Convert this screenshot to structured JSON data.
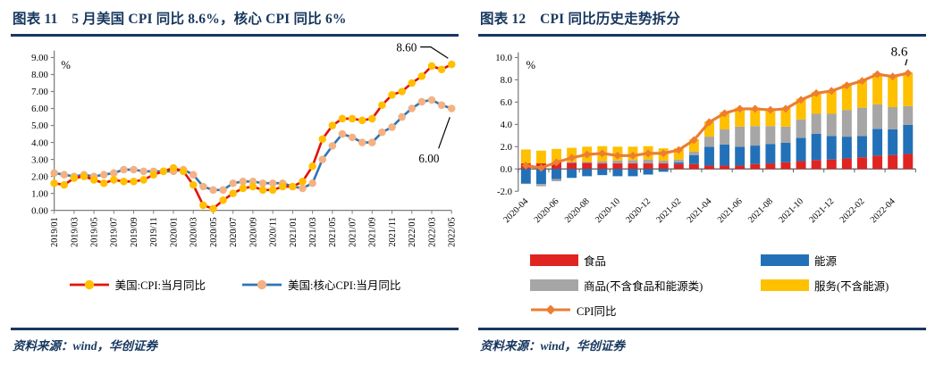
{
  "figure11": {
    "title": "图表 11　5 月美国 CPI 同比 8.6%，核心 CPI 同比 6%",
    "source": "资料来源：wind，华创证券"
  },
  "figure12": {
    "title": "图表 12　CPI 同比历史走势拆分",
    "source": "资料来源：wind，华创证券"
  },
  "chart_data": [
    {
      "type": "line",
      "figure": "图表 11",
      "unit_label": "%",
      "ylim": [
        0,
        9
      ],
      "ytick_labels": [
        "0.00",
        "1.00",
        "2.00",
        "3.00",
        "4.00",
        "5.00",
        "6.00",
        "7.00",
        "8.00",
        "9.00"
      ],
      "x_tick_labels": [
        "2019/01",
        "2019/03",
        "2019/05",
        "2019/07",
        "2019/09",
        "2019/11",
        "2020/01",
        "2020/03",
        "2020/05",
        "2020/07",
        "2020/09",
        "2020/11",
        "2021/01",
        "2021/03",
        "2021/05",
        "2021/07",
        "2021/09",
        "2021/11",
        "2022/01",
        "2022/03",
        "2022/05"
      ],
      "x_tick_step": 2,
      "grid": false,
      "legend_position": "bottom",
      "series": [
        {
          "name": "美国:CPI:当月同比",
          "line_color": "#E3120B",
          "marker_color": "#FFC000",
          "values": [
            1.6,
            1.5,
            1.9,
            2.0,
            1.8,
            1.6,
            1.8,
            1.7,
            1.7,
            1.8,
            2.1,
            2.3,
            2.5,
            2.3,
            1.5,
            0.3,
            0.1,
            0.6,
            1.0,
            1.3,
            1.4,
            1.2,
            1.2,
            1.4,
            1.4,
            1.7,
            2.6,
            4.2,
            5.0,
            5.4,
            5.4,
            5.3,
            5.4,
            6.2,
            6.8,
            7.0,
            7.5,
            7.9,
            8.5,
            8.3,
            8.6
          ]
        },
        {
          "name": "美国:核心CPI:当月同比",
          "line_color": "#2E75B6",
          "marker_color": "#F4B183",
          "values": [
            2.2,
            2.1,
            2.0,
            2.1,
            2.0,
            2.1,
            2.2,
            2.4,
            2.4,
            2.3,
            2.3,
            2.3,
            2.3,
            2.4,
            2.1,
            1.4,
            1.2,
            1.2,
            1.6,
            1.7,
            1.7,
            1.6,
            1.6,
            1.6,
            1.4,
            1.3,
            1.6,
            3.0,
            3.8,
            4.5,
            4.3,
            4.0,
            4.0,
            4.6,
            4.9,
            5.5,
            6.0,
            6.4,
            6.5,
            6.2,
            6.0
          ]
        }
      ],
      "annotations": [
        {
          "text": "8.60",
          "series": 0,
          "point": "last"
        },
        {
          "text": "6.00",
          "series": 1,
          "point": "last"
        }
      ]
    },
    {
      "type": "stacked-bar-line-combo",
      "figure": "图表 12",
      "unit_label": "%",
      "ylim": [
        -2,
        10
      ],
      "ytick_labels": [
        "-2.0",
        "0.0",
        "2.0",
        "4.0",
        "6.0",
        "8.0",
        "10.0"
      ],
      "x_tick_labels": [
        "2020-04",
        "2020-06",
        "2020-08",
        "2020-10",
        "2020-12",
        "2021-02",
        "2021-04",
        "2021-06",
        "2021-08",
        "2021-10",
        "2021-12",
        "2022-02",
        "2022-04"
      ],
      "x_tick_step": 2,
      "grid": false,
      "legend_position": "bottom",
      "bar_series": [
        {
          "name": "食品",
          "color": "#DF2422",
          "values": [
            0.5,
            0.5,
            0.6,
            0.55,
            0.55,
            0.5,
            0.5,
            0.5,
            0.5,
            0.5,
            0.45,
            0.45,
            0.3,
            0.3,
            0.3,
            0.45,
            0.5,
            0.6,
            0.7,
            0.8,
            0.85,
            0.95,
            1.05,
            1.2,
            1.25,
            1.35
          ]
        },
        {
          "name": "能源",
          "color": "#2271B8",
          "values": [
            -1.3,
            -1.35,
            -0.9,
            -0.8,
            -0.65,
            -0.55,
            -0.65,
            -0.65,
            -0.5,
            -0.25,
            0.15,
            0.8,
            1.7,
            1.9,
            1.7,
            1.65,
            1.75,
            1.75,
            2.1,
            2.35,
            2.1,
            1.95,
            1.9,
            2.4,
            2.3,
            2.6
          ]
        },
        {
          "name": "商品(不含食品和能源类)",
          "color": "#A6A6A6",
          "values": [
            -0.05,
            -0.2,
            -0.2,
            0.1,
            0.1,
            0.2,
            0.25,
            0.3,
            0.35,
            0.25,
            0.25,
            0.3,
            0.9,
            1.35,
            1.8,
            1.75,
            1.6,
            1.45,
            1.65,
            1.8,
            2.0,
            2.4,
            2.55,
            2.2,
            2.0,
            1.7
          ]
        },
        {
          "name": "服务(不含能源)",
          "color": "#FFC000",
          "values": [
            1.25,
            1.15,
            1.2,
            1.25,
            1.35,
            1.35,
            1.25,
            1.2,
            1.2,
            1.1,
            1.0,
            1.1,
            1.35,
            1.55,
            1.7,
            1.65,
            1.6,
            1.7,
            1.85,
            1.95,
            2.1,
            2.3,
            2.5,
            2.8,
            2.9,
            3.0
          ]
        }
      ],
      "line_series": {
        "name": "CPI同比",
        "color": "#ED7D31",
        "marker": "diamond",
        "values": [
          0.3,
          0.1,
          0.6,
          1.0,
          1.3,
          1.4,
          1.2,
          1.2,
          1.4,
          1.4,
          1.7,
          2.6,
          4.2,
          5.0,
          5.4,
          5.4,
          5.3,
          5.4,
          6.2,
          6.8,
          7.0,
          7.5,
          7.9,
          8.5,
          8.3,
          8.6
        ]
      },
      "annotations": [
        {
          "text": "8.6",
          "series": "line",
          "point": "last"
        }
      ]
    }
  ]
}
